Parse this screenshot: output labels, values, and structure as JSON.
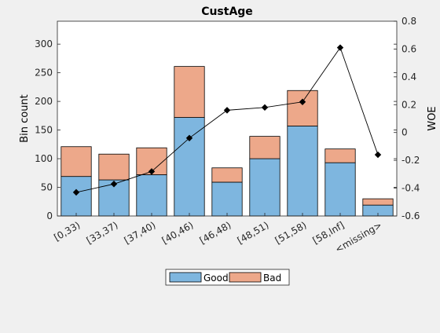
{
  "chart_data": {
    "type": "bar",
    "title": "CustAge",
    "xlabel": "",
    "ylabel": "Bin count",
    "y2label": "WOE",
    "stacked": true,
    "categories": [
      "[0,33)",
      "[33,37)",
      "[37,40)",
      "[40,46)",
      "[46,48)",
      "[48,51)",
      "[51,58)",
      "[58,Inf]",
      "<missing>"
    ],
    "series": [
      {
        "name": "Good",
        "color": "#7eb6df",
        "values": [
          69,
          63,
          72,
          172,
          59,
          100,
          157,
          93,
          19
        ]
      },
      {
        "name": "Bad",
        "color": "#eda88a",
        "values": [
          52,
          45,
          47,
          89,
          25,
          39,
          62,
          24,
          11
        ]
      }
    ],
    "woe": {
      "values": [
        -0.43,
        -0.37,
        -0.28,
        -0.04,
        0.16,
        0.18,
        0.22,
        0.61,
        -0.16
      ],
      "color": "#000000"
    },
    "ylim": [
      0,
      340
    ],
    "yticks": [
      0,
      50,
      100,
      150,
      200,
      250,
      300
    ],
    "y2lim": [
      -0.6,
      0.8
    ],
    "y2ticks": [
      -0.6,
      -0.4,
      -0.2,
      0,
      0.2,
      0.4,
      0.6,
      0.8
    ],
    "y2ticklabels": [
      "-0.6",
      "-0.4",
      "-0.2",
      "0",
      "0.2",
      "0.4",
      "0.6",
      "0.8"
    ],
    "grid": false,
    "legend": {
      "placement": "bottom",
      "entries": [
        "Good",
        "Bad"
      ]
    }
  }
}
